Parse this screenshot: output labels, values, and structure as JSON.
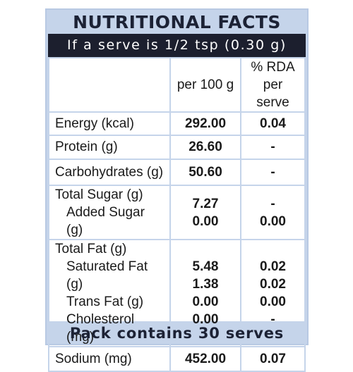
{
  "title": "NUTRITIONAL FACTS",
  "serve_info": "If a serve is 1/2 tsp (0.30 g)",
  "columns": {
    "per100": "per 100 g",
    "rda_line1": "% RDA",
    "rda_line2": "per serve"
  },
  "rows": {
    "energy": {
      "label": "Energy (kcal)",
      "per100": "292.00",
      "rda": "0.04"
    },
    "protein": {
      "label": "Protein (g)",
      "per100": "26.60",
      "rda": "-"
    },
    "carbs": {
      "label": "Carbohydrates (g)",
      "per100": "50.60",
      "rda": "-"
    },
    "total_sugar": {
      "label": "Total Sugar (g)",
      "per100": "7.27",
      "rda": "-"
    },
    "added_sugar": {
      "label": "Added Sugar (g)",
      "per100": "0.00",
      "rda": "0.00"
    },
    "total_fat": {
      "label": "Total Fat (g)",
      "per100": "5.48",
      "rda": "0.02"
    },
    "sat_fat": {
      "label": "Saturated Fat (g)",
      "per100": "1.38",
      "rda": "0.02"
    },
    "trans_fat": {
      "label": "Trans Fat (g)",
      "per100": "0.00",
      "rda": "0.00"
    },
    "cholesterol": {
      "label": "Cholesterol (mg)",
      "per100": "0.00",
      "rda": "-"
    },
    "sodium": {
      "label": "Sodium (mg)",
      "per100": "452.00",
      "rda": "0.07"
    }
  },
  "footer": "Pack contains 30 serves",
  "colors": {
    "panel_blue": "#c5d4ea",
    "bar_dark": "#1c1f2e"
  }
}
